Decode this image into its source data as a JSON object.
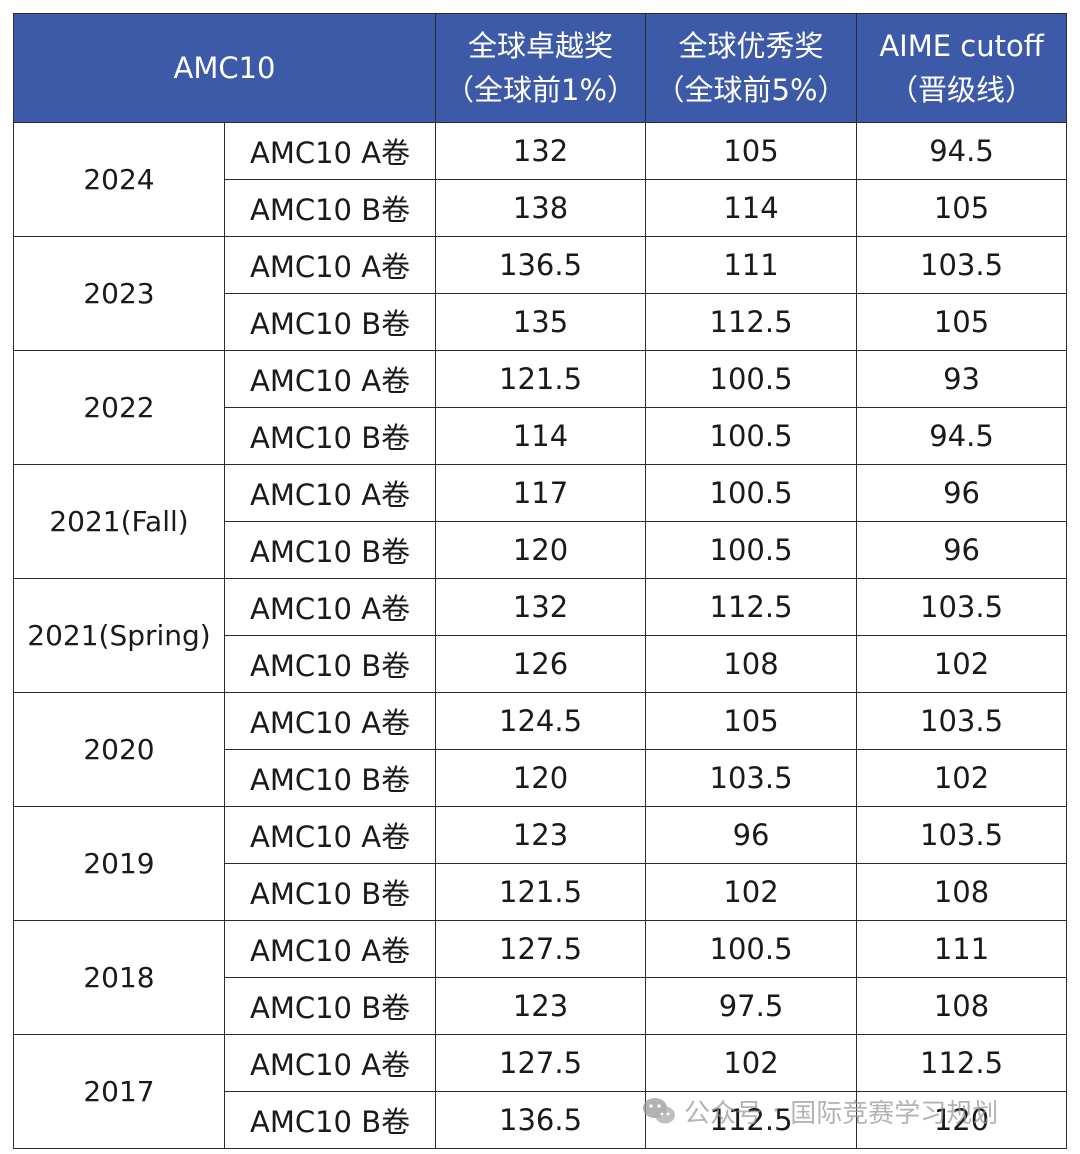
{
  "header": {
    "title": "AMC10",
    "col_top1_line1": "全球卓越奖",
    "col_top1_line2": "（全球前1%）",
    "col_top5_line1": "全球优秀奖",
    "col_top5_line2": "（全球前5%）",
    "col_aime_line1": "AIME cutoff",
    "col_aime_line2": "（晋级线）"
  },
  "rows": [
    {
      "year": "2024",
      "papers": [
        {
          "paper": "AMC10 A卷",
          "top1": "132",
          "top5": "105",
          "aime": "94.5"
        },
        {
          "paper": "AMC10 B卷",
          "top1": "138",
          "top5": "114",
          "aime": "105"
        }
      ]
    },
    {
      "year": "2023",
      "papers": [
        {
          "paper": "AMC10 A卷",
          "top1": "136.5",
          "top5": "111",
          "aime": "103.5"
        },
        {
          "paper": "AMC10 B卷",
          "top1": "135",
          "top5": "112.5",
          "aime": "105"
        }
      ]
    },
    {
      "year": "2022",
      "papers": [
        {
          "paper": "AMC10 A卷",
          "top1": "121.5",
          "top5": "100.5",
          "aime": "93"
        },
        {
          "paper": "AMC10 B卷",
          "top1": "114",
          "top5": "100.5",
          "aime": "94.5"
        }
      ]
    },
    {
      "year": "2021(Fall)",
      "papers": [
        {
          "paper": "AMC10 A卷",
          "top1": "117",
          "top5": "100.5",
          "aime": "96"
        },
        {
          "paper": "AMC10 B卷",
          "top1": "120",
          "top5": "100.5",
          "aime": "96"
        }
      ]
    },
    {
      "year": "2021(Spring)",
      "papers": [
        {
          "paper": "AMC10 A卷",
          "top1": "132",
          "top5": "112.5",
          "aime": "103.5"
        },
        {
          "paper": "AMC10 B卷",
          "top1": "126",
          "top5": "108",
          "aime": "102"
        }
      ]
    },
    {
      "year": "2020",
      "papers": [
        {
          "paper": "AMC10 A卷",
          "top1": "124.5",
          "top5": "105",
          "aime": "103.5"
        },
        {
          "paper": "AMC10 B卷",
          "top1": "120",
          "top5": "103.5",
          "aime": "102"
        }
      ]
    },
    {
      "year": "2019",
      "papers": [
        {
          "paper": "AMC10 A卷",
          "top1": "123",
          "top5": "96",
          "aime": "103.5"
        },
        {
          "paper": "AMC10 B卷",
          "top1": "121.5",
          "top5": "102",
          "aime": "108"
        }
      ]
    },
    {
      "year": "2018",
      "papers": [
        {
          "paper": "AMC10 A卷",
          "top1": "127.5",
          "top5": "100.5",
          "aime": "111"
        },
        {
          "paper": "AMC10 B卷",
          "top1": "123",
          "top5": "97.5",
          "aime": "108"
        }
      ]
    },
    {
      "year": "2017",
      "papers": [
        {
          "paper": "AMC10 A卷",
          "top1": "127.5",
          "top5": "102",
          "aime": "112.5"
        },
        {
          "paper": "AMC10 B卷",
          "top1": "136.5",
          "top5": "112.5",
          "aime": "120"
        }
      ]
    }
  ],
  "watermark": {
    "icon": "wechat-icon",
    "source": "公众号",
    "separator": "·",
    "account": "国际竞赛学习规划"
  },
  "colors": {
    "header_bg": "#3c5aa8",
    "header_text": "#ffffff",
    "grid_line": "#2c2c2c",
    "cell_text": "#1a1a1a"
  }
}
